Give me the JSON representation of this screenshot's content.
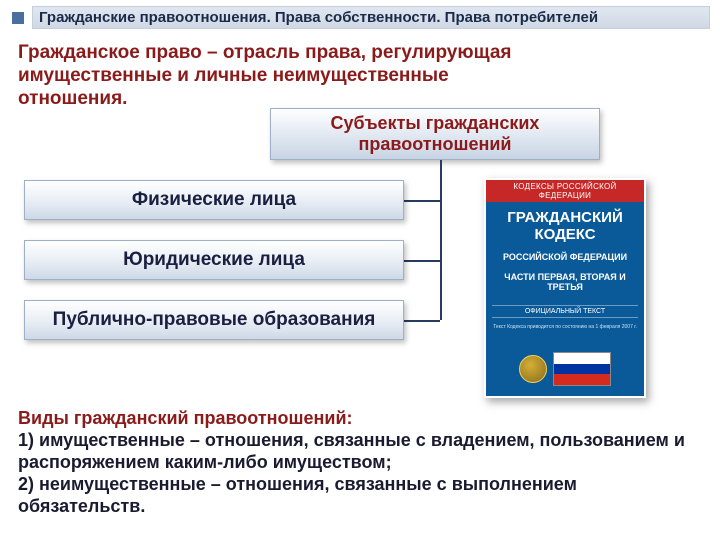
{
  "colors": {
    "accent_red": "#8b1a1a",
    "text_dark": "#1a2040",
    "box_border": "#9db0c8",
    "connector": "#2a3a60",
    "book_blue": "#0a5a99",
    "book_red": "#c62828"
  },
  "title": "Гражданские правоотношения. Права собственности. Права потребителей",
  "definition": "Гражданское право – отрасль права, регулирующая имущественные и личные неимущественные отношения.",
  "subjects_heading": "Субъекты гражданских правоотношений",
  "entities": {
    "e1": "Физические лица",
    "e2": "Юридические лица",
    "e3": "Публично-правовые образования"
  },
  "book": {
    "top": "КОДЕКСЫ РОССИЙСКОЙ ФЕДЕРАЦИИ",
    "title": "ГРАЖДАНСКИЙ КОДЕКС",
    "sub": "РОССИЙСКОЙ ФЕДЕРАЦИИ",
    "parts": "ЧАСТИ ПЕРВАЯ, ВТОРАЯ И ТРЕТЬЯ",
    "official": "ОФИЦИАЛЬНЫЙ ТЕКСТ",
    "note": "Текст Кодекса приводится по состоянию на 1 февраля 2007 г."
  },
  "types": {
    "heading": "Виды гражданский правоотношений:",
    "item1": "1) имущественные – отношения, связанные с владением, пользованием и распоряжением каким-либо имуществом;",
    "item2": "2) неимущественные – отношения, связанные с выполнением обязательств."
  }
}
